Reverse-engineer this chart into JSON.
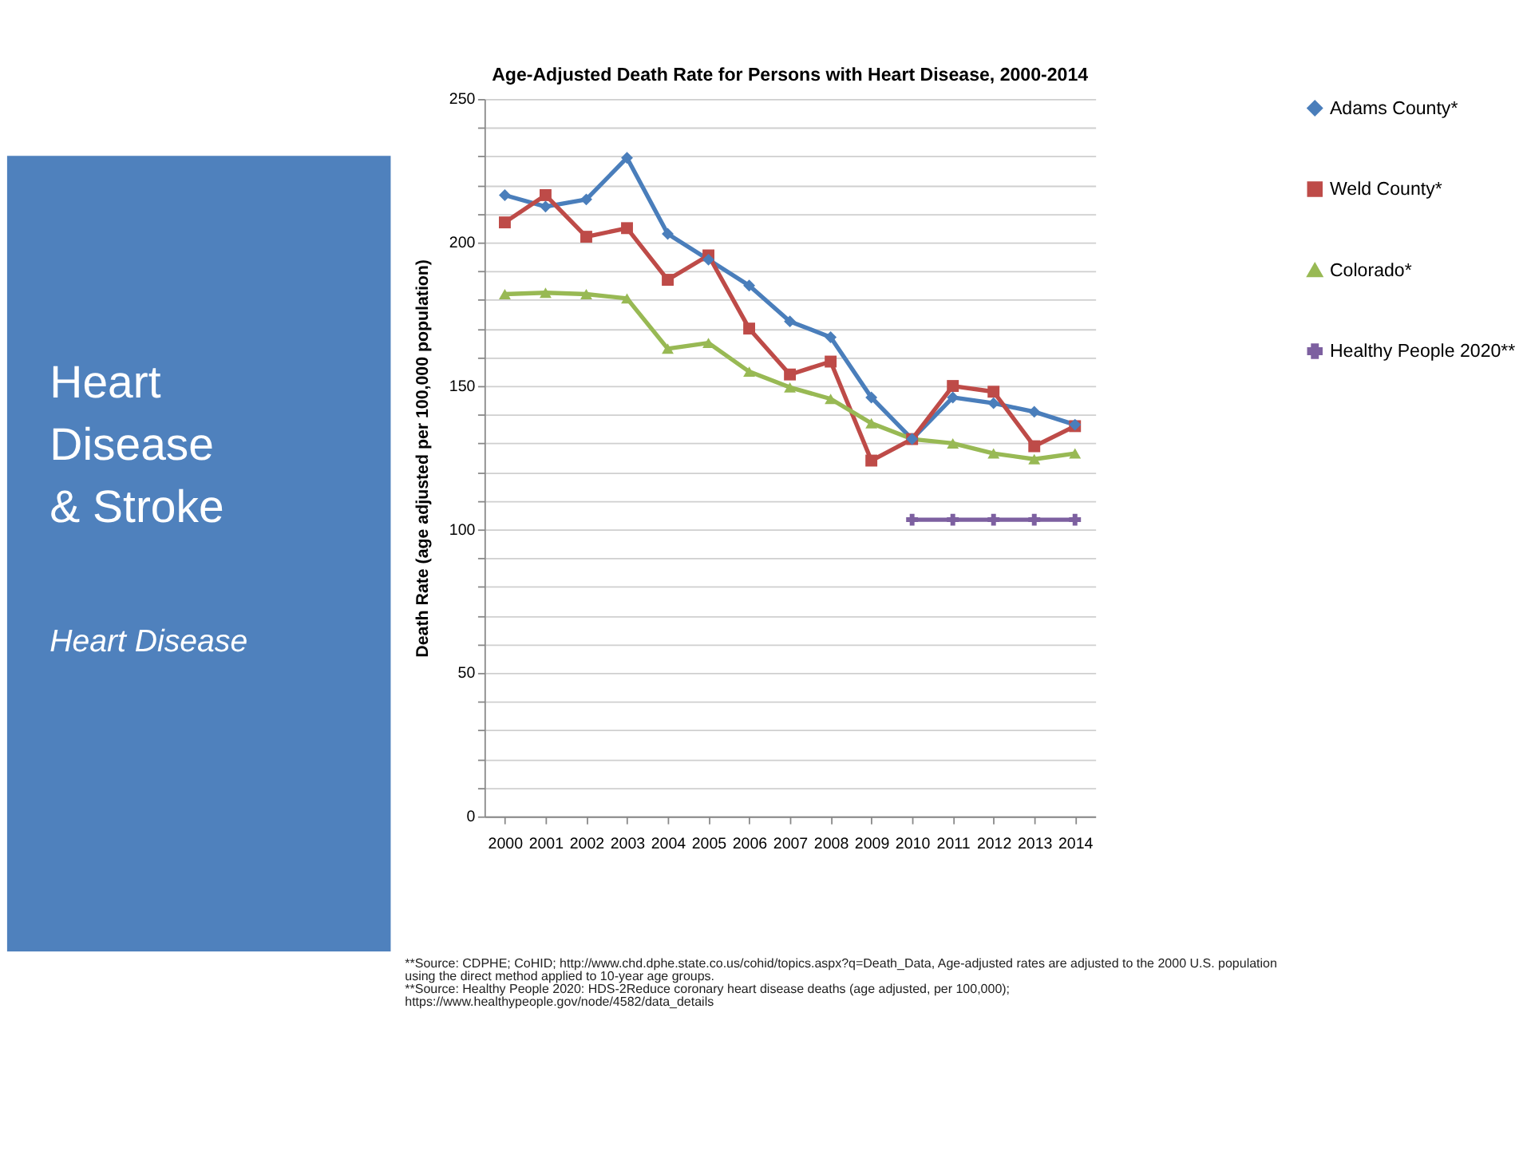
{
  "chart_data": {
    "type": "line",
    "title": "Age-Adjusted Death Rate for Persons with Heart Disease, 2000-2014",
    "ylabel": "Death Rate (age adjusted per 100,000 population)",
    "categories": [
      "2000",
      "2001",
      "2002",
      "2003",
      "2004",
      "2005",
      "2006",
      "2007",
      "2008",
      "2009",
      "2010",
      "2011",
      "2012",
      "2013",
      "2014"
    ],
    "series": [
      {
        "name": "Adams County*",
        "color": "#4a7ebb",
        "marker": "diamond",
        "values": [
          216.5,
          212.5,
          215,
          229.5,
          203,
          194,
          185,
          172.5,
          167,
          146,
          131.5,
          146,
          144,
          141,
          136.5
        ]
      },
      {
        "name": "Weld County*",
        "color": "#be4b48",
        "marker": "square",
        "values": [
          207,
          216.5,
          202,
          205,
          187,
          195.5,
          170,
          154,
          158.5,
          124,
          131.5,
          150,
          148,
          129,
          136
        ]
      },
      {
        "name": "Colorado*",
        "color": "#98b954",
        "marker": "triangle",
        "values": [
          182,
          182.5,
          182,
          180.5,
          163,
          165,
          155,
          149.5,
          145.5,
          137,
          131.5,
          130,
          126.5,
          124.5,
          126.5
        ]
      },
      {
        "name": "Healthy People 2020**",
        "color": "#7d60a0",
        "marker": "cross",
        "values": [
          null,
          null,
          null,
          null,
          null,
          null,
          null,
          null,
          null,
          null,
          103.4,
          103.4,
          103.4,
          103.4,
          103.4
        ]
      }
    ],
    "ylim": [
      0,
      250
    ],
    "yticks": [
      0,
      {
        "value": 10,
        "label": null
      },
      {
        "value": 20,
        "label": null
      },
      {
        "value": 30,
        "label": null
      },
      {
        "value": 40,
        "label": null
      },
      50,
      {
        "value": 60,
        "label": null
      },
      {
        "value": 70,
        "label": null
      },
      {
        "value": 80,
        "label": null
      },
      {
        "value": 90,
        "label": null
      },
      100,
      {
        "value": 110,
        "label": null
      },
      {
        "value": 120,
        "label": null
      },
      {
        "value": 130,
        "label": null
      },
      {
        "value": 140,
        "label": null
      },
      150,
      {
        "value": 160,
        "label": null
      },
      {
        "value": 170,
        "label": null
      },
      {
        "value": 180,
        "label": null
      },
      {
        "value": 190,
        "label": null
      },
      200,
      {
        "value": 210,
        "label": null
      },
      {
        "value": 220,
        "label": null
      },
      {
        "value": 230,
        "label": null
      },
      {
        "value": 240,
        "label": null
      },
      250
    ],
    "grid": "y",
    "legend": "right",
    "line_style": "solid",
    "annotations": [
      "Heart Disease & Stroke",
      "Heart Disease",
      "**Source: CDPHE; CoHID; http://www.chd.dphe.state.co.us/cohid/topics.aspx?q=Death_Data, Age-adjusted rates are adjusted to the 2000 U.S. population using the direct method applied to 10-year age groups.",
      "**Source: Healthy People 2020: HDS-2Reduce coronary heart disease deaths (age adjusted, per 100,000); https://www.healthypeople.gov/node/4582/data_details"
    ]
  }
}
